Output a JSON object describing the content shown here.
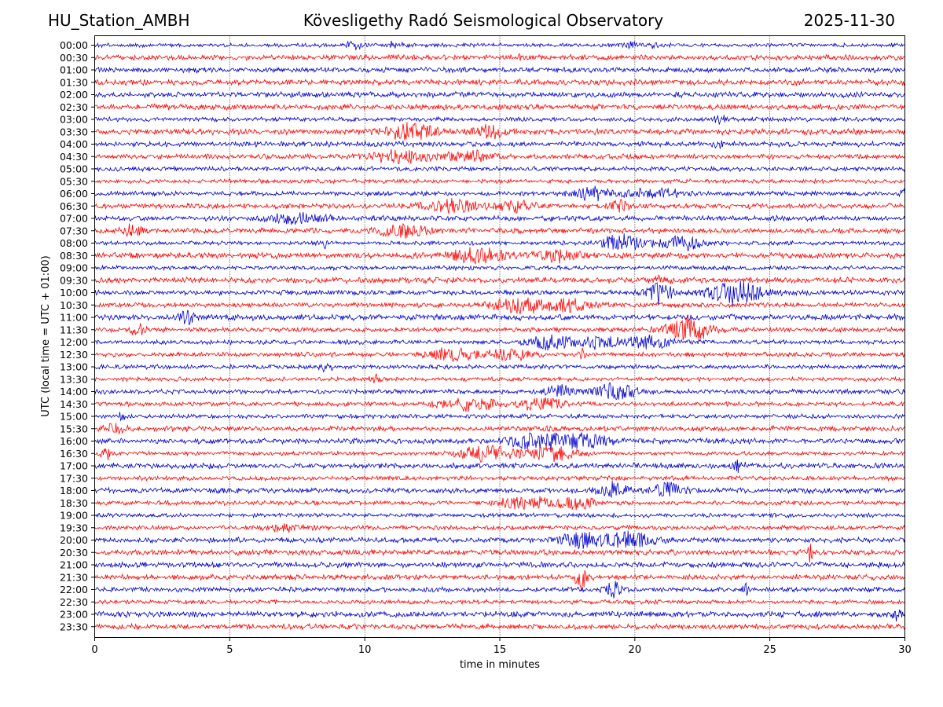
{
  "header": {
    "station": "HU_Station_AMBH",
    "observatory": "Kövesligethy Radó Seismological Observatory",
    "date": "2025-11-30"
  },
  "chart_data": {
    "type": "line",
    "title": "Kövesligethy Radó Seismological Observatory",
    "xlabel": "time in minutes",
    "ylabel": "UTC (local time = UTC + 01:00)",
    "xlim": [
      0,
      30
    ],
    "xticks": [
      0,
      5,
      10,
      15,
      20,
      25,
      30
    ],
    "grid": "vertical dotted lines at 5-minute ticks",
    "colors": {
      "even_rows": "#0000d0",
      "odd_rows": "#ff0000",
      "axis": "#000000",
      "grid": "#000000"
    },
    "rows": [
      {
        "label": "00:00",
        "events": [
          [
            9.6,
            0.3,
            0.6
          ],
          [
            11.1,
            0.3,
            0.4
          ],
          [
            19.8,
            0.3,
            0.4
          ],
          [
            20.7,
            0.2,
            0.4
          ]
        ]
      },
      {
        "label": "00:30",
        "events": [
          [
            15.7,
            0.05,
            1.1
          ]
        ]
      },
      {
        "label": "01:00",
        "events": []
      },
      {
        "label": "01:30",
        "events": []
      },
      {
        "label": "02:00",
        "events": []
      },
      {
        "label": "02:30",
        "events": []
      },
      {
        "label": "03:00",
        "events": [
          [
            23.1,
            0.3,
            0.5
          ]
        ]
      },
      {
        "label": "03:30",
        "events": [
          [
            11.6,
            1.0,
            1.0
          ],
          [
            14.6,
            0.6,
            0.8
          ]
        ]
      },
      {
        "label": "04:00",
        "events": [
          [
            23.1,
            0.15,
            0.5
          ]
        ]
      },
      {
        "label": "04:30",
        "events": [
          [
            11.3,
            1.2,
            0.8
          ],
          [
            13.9,
            0.8,
            0.7
          ]
        ]
      },
      {
        "label": "05:00",
        "events": []
      },
      {
        "label": "05:30",
        "events": []
      },
      {
        "label": "06:00",
        "events": [
          [
            18.4,
            0.6,
            0.9
          ],
          [
            20.8,
            1.0,
            0.7
          ],
          [
            29.9,
            0.1,
            0.8
          ]
        ]
      },
      {
        "label": "06:30",
        "events": [
          [
            13.2,
            1.0,
            0.9
          ],
          [
            15.5,
            0.8,
            0.6
          ],
          [
            19.4,
            0.3,
            0.9
          ]
        ]
      },
      {
        "label": "07:00",
        "events": [
          [
            7.5,
            1.0,
            0.6
          ]
        ]
      },
      {
        "label": "07:30",
        "events": [
          [
            1.4,
            0.4,
            0.8
          ],
          [
            11.3,
            1.0,
            0.8
          ]
        ]
      },
      {
        "label": "08:00",
        "events": [
          [
            8.5,
            0.1,
            0.9
          ],
          [
            19.5,
            0.8,
            1.1
          ],
          [
            21.7,
            0.8,
            1.0
          ]
        ]
      },
      {
        "label": "08:30",
        "events": [
          [
            14.2,
            1.0,
            0.9
          ],
          [
            17.2,
            0.8,
            0.7
          ]
        ]
      },
      {
        "label": "09:00",
        "events": []
      },
      {
        "label": "09:30",
        "events": [
          [
            20.8,
            0.2,
            0.5
          ]
        ]
      },
      {
        "label": "10:00",
        "events": [
          [
            20.9,
            0.5,
            1.4
          ],
          [
            23.8,
            1.0,
            1.5
          ]
        ]
      },
      {
        "label": "10:30",
        "events": [
          [
            15.8,
            1.0,
            1.0
          ],
          [
            17.7,
            0.8,
            0.8
          ]
        ]
      },
      {
        "label": "11:00",
        "events": [
          [
            3.4,
            0.3,
            0.8
          ]
        ]
      },
      {
        "label": "11:30",
        "events": [
          [
            1.6,
            0.3,
            0.7
          ],
          [
            22.0,
            0.8,
            1.6
          ]
        ]
      },
      {
        "label": "12:00",
        "events": [
          [
            16.9,
            0.8,
            1.0
          ],
          [
            18.6,
            0.8,
            0.9
          ],
          [
            20.6,
            1.0,
            0.8
          ]
        ]
      },
      {
        "label": "12:30",
        "events": [
          [
            13.2,
            0.8,
            0.9
          ],
          [
            15.3,
            0.8,
            0.7
          ],
          [
            18.1,
            0.1,
            0.8
          ]
        ]
      },
      {
        "label": "13:00",
        "events": [
          [
            8.6,
            0.3,
            0.5
          ]
        ]
      },
      {
        "label": "13:30",
        "events": [
          [
            10.4,
            0.2,
            0.6
          ]
        ]
      },
      {
        "label": "14:00",
        "events": [
          [
            17.2,
            0.5,
            0.8
          ],
          [
            19.3,
            0.8,
            1.0
          ],
          [
            29.7,
            0.2,
            0.6
          ]
        ]
      },
      {
        "label": "14:30",
        "events": [
          [
            13.9,
            1.0,
            0.9
          ],
          [
            16.5,
            0.8,
            0.8
          ]
        ]
      },
      {
        "label": "15:00",
        "events": [
          [
            1.0,
            0.1,
            0.6
          ]
        ]
      },
      {
        "label": "15:30",
        "events": [
          [
            0.8,
            0.4,
            0.6
          ],
          [
            16.8,
            0.1,
            0.8
          ]
        ]
      },
      {
        "label": "16:00",
        "events": [
          [
            16.4,
            1.0,
            1.1
          ],
          [
            18.2,
            0.8,
            1.0
          ]
        ]
      },
      {
        "label": "16:30",
        "events": [
          [
            0.4,
            0.2,
            0.8
          ],
          [
            14.6,
            1.0,
            1.2
          ],
          [
            17.0,
            0.8,
            1.0
          ]
        ]
      },
      {
        "label": "17:00",
        "events": [
          [
            23.8,
            0.2,
            1.0
          ]
        ]
      },
      {
        "label": "17:30",
        "events": []
      },
      {
        "label": "18:00",
        "events": [
          [
            19.2,
            0.5,
            1.1
          ],
          [
            21.2,
            0.6,
            1.0
          ]
        ]
      },
      {
        "label": "18:30",
        "events": [
          [
            16.0,
            1.0,
            0.8
          ],
          [
            17.9,
            0.6,
            0.8
          ]
        ]
      },
      {
        "label": "19:00",
        "events": []
      },
      {
        "label": "19:30",
        "events": [
          [
            7.0,
            0.8,
            0.4
          ]
        ]
      },
      {
        "label": "20:00",
        "events": [
          [
            18.0,
            0.8,
            1.0
          ],
          [
            19.8,
            0.8,
            1.0
          ]
        ]
      },
      {
        "label": "20:30",
        "events": [
          [
            26.5,
            0.08,
            1.5
          ]
        ]
      },
      {
        "label": "21:00",
        "events": []
      },
      {
        "label": "21:30",
        "events": [
          [
            18.0,
            0.2,
            1.7
          ]
        ]
      },
      {
        "label": "22:00",
        "events": [
          [
            19.2,
            0.3,
            1.1
          ],
          [
            24.1,
            0.1,
            0.6
          ]
        ]
      },
      {
        "label": "22:30",
        "events": []
      },
      {
        "label": "23:00",
        "events": [
          [
            29.7,
            0.2,
            0.7
          ]
        ]
      },
      {
        "label": "23:30",
        "events": []
      }
    ]
  }
}
